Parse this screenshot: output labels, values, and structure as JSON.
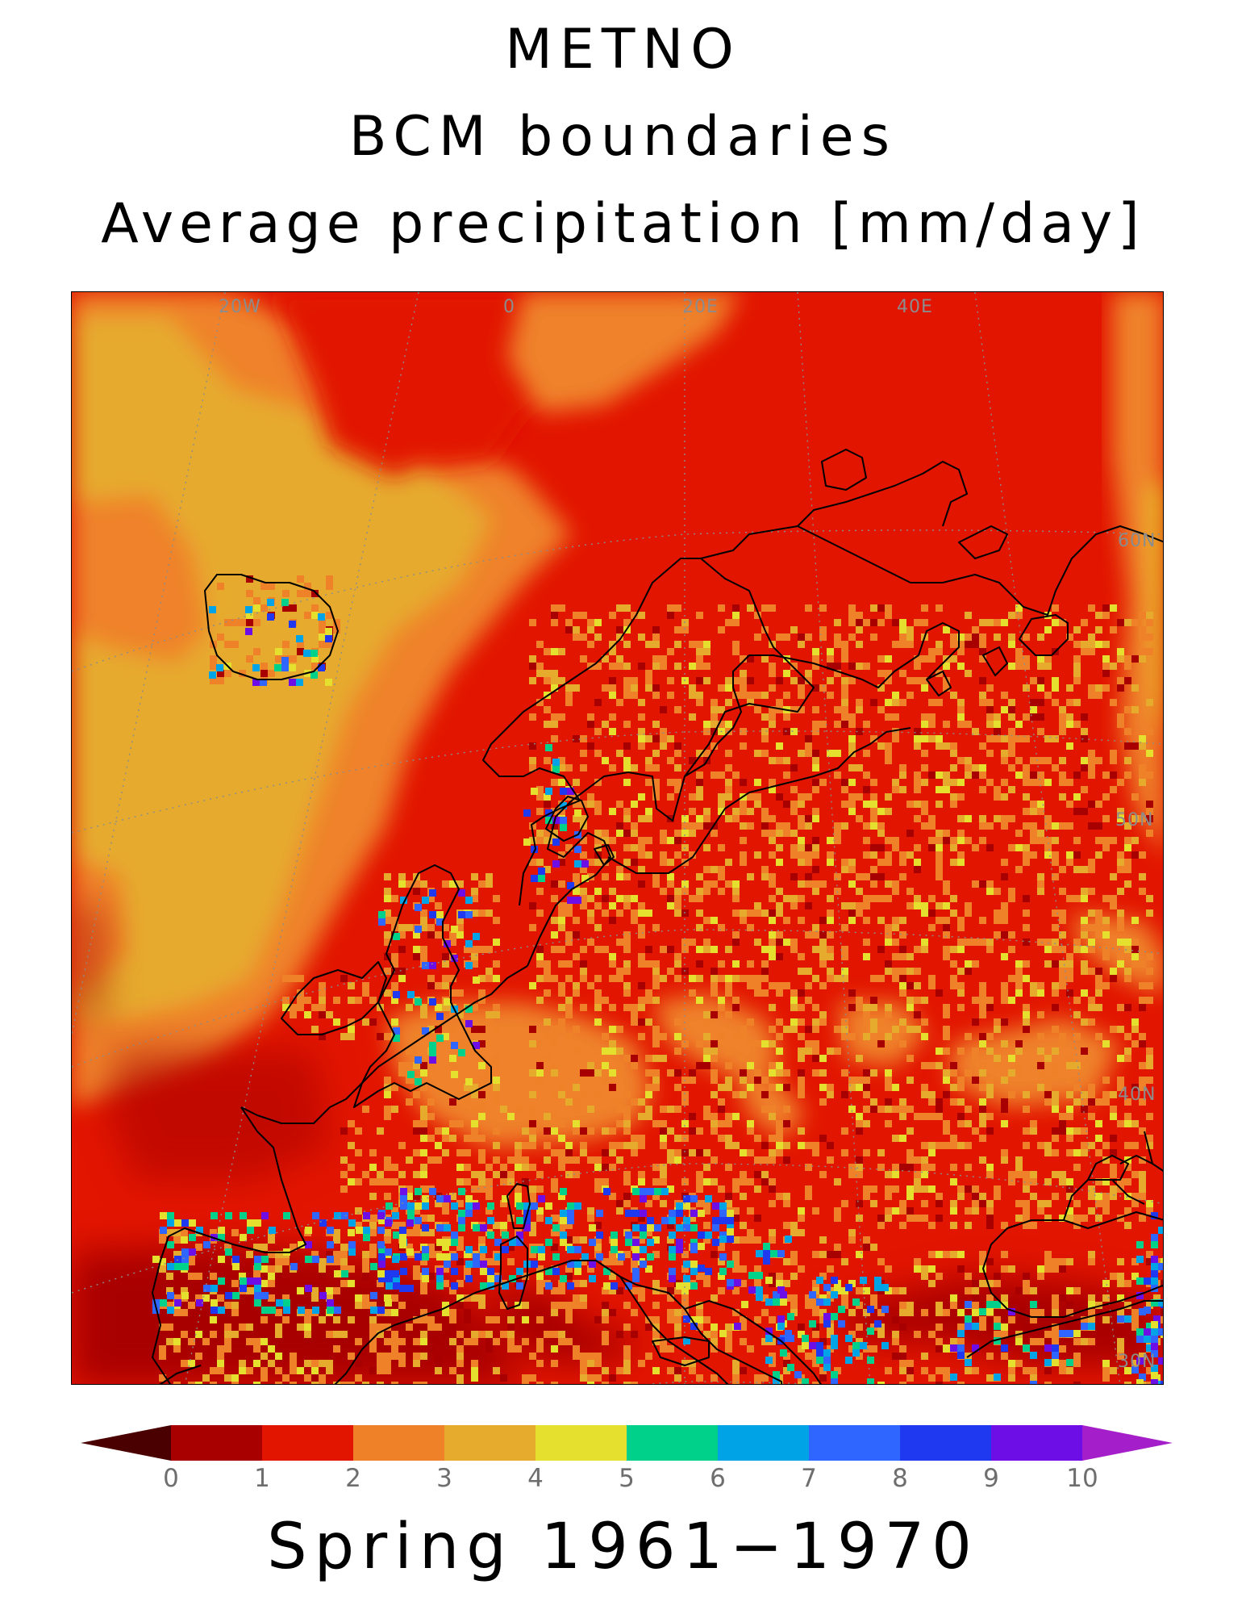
{
  "titles": {
    "line1": "METNO",
    "line2": "BCM boundaries",
    "line3": "Average precipitation [mm/day]"
  },
  "map": {
    "variable": "Average precipitation",
    "units": "mm/day",
    "region": "Europe",
    "projection": "polar stereographic",
    "coastlines": true,
    "graticule": "dotted gray",
    "graticule_labels": {
      "lon_w20": "20W",
      "lon_0": "0",
      "lon_e20": "20E",
      "lon_e40": "40E",
      "lat_60": "60N",
      "lat_50": "50N",
      "lat_40": "40N",
      "lat_30": "30N"
    }
  },
  "colorbar": {
    "levels": [
      0,
      1,
      2,
      3,
      4,
      5,
      6,
      7,
      8,
      9,
      10
    ],
    "tick_labels": [
      "0",
      "1",
      "2",
      "3",
      "4",
      "5",
      "6",
      "7",
      "8",
      "9",
      "10"
    ],
    "colors": [
      "#4a0000",
      "#a80000",
      "#e21500",
      "#ef8229",
      "#e6ab2d",
      "#e5e02e",
      "#00d18a",
      "#00a3e6",
      "#2e66ff",
      "#1f39f0",
      "#6e0ee6",
      "#a41fc9"
    ],
    "extend": "both",
    "orientation": "horizontal"
  },
  "footer": {
    "label": "Spring 1961−1970"
  }
}
